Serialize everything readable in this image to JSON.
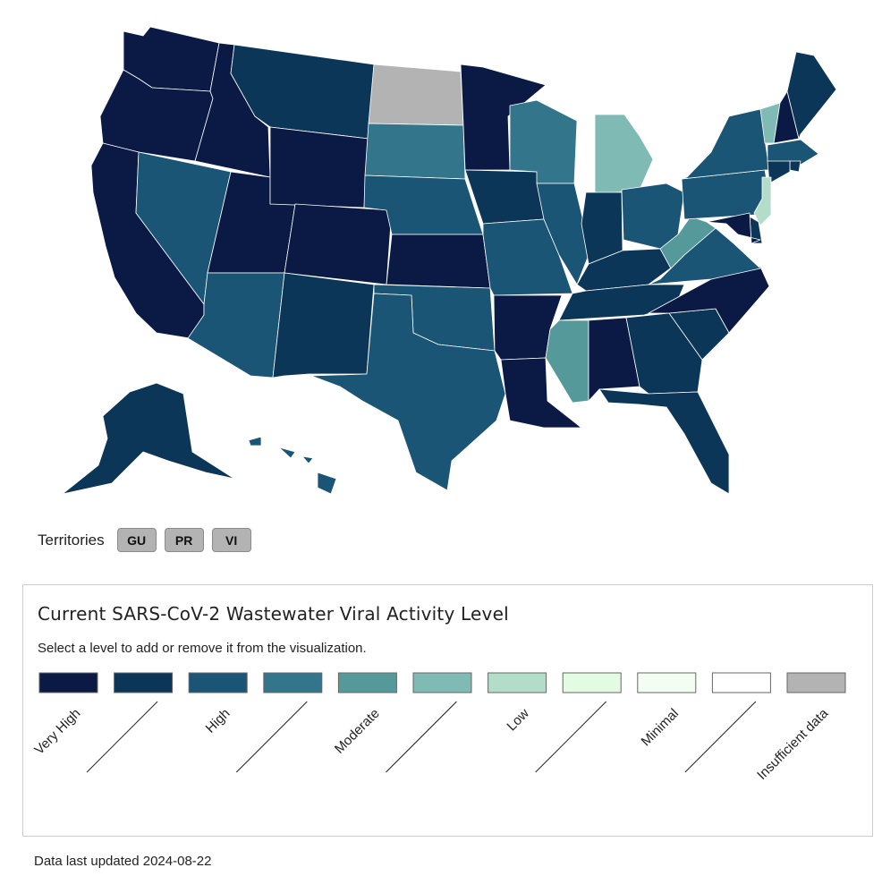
{
  "levels": [
    {
      "label": "Very High",
      "color": "#0b1a45"
    },
    {
      "label": "",
      "color": "#0b3658"
    },
    {
      "label": "High",
      "color": "#1a5575"
    },
    {
      "label": "",
      "color": "#33758a"
    },
    {
      "label": "Moderate",
      "color": "#55999b"
    },
    {
      "label": "",
      "color": "#80bab4"
    },
    {
      "label": "Low",
      "color": "#b3dcc9"
    },
    {
      "label": "",
      "color": "#e2fbe1"
    },
    {
      "label": "Minimal",
      "color": "#f3fdf1"
    },
    {
      "label": "",
      "color": "#ffffff"
    },
    {
      "label": "Insufficient data",
      "color": "#b3b3b3"
    }
  ],
  "state_levels": {
    "WA": 0,
    "OR": 0,
    "CA": 0,
    "ID": 0,
    "NV": 2,
    "UT": 0,
    "AZ": 2,
    "MT": 1,
    "WY": 0,
    "CO": 0,
    "NM": 1,
    "ND": 10,
    "SD": 3,
    "NE": 2,
    "KS": 0,
    "OK": 2,
    "TX": 2,
    "MN": 0,
    "IA": 1,
    "MO": 2,
    "AR": 0,
    "LA": 0,
    "WI": 3,
    "IL": 2,
    "MI": 5,
    "IN": 1,
    "OH": 2,
    "KY": 1,
    "TN": 1,
    "MS": 4,
    "AL": 0,
    "GA": 1,
    "FL": 1,
    "SC": 1,
    "NC": 0,
    "VA": 2,
    "WV": 4,
    "PA": 2,
    "NY": 2,
    "VT": 5,
    "NH": 0,
    "ME": 1,
    "MA": 2,
    "RI": 1,
    "CT": 1,
    "NJ": 6,
    "DE": 1,
    "MD": 0,
    "AK": 1,
    "HI": 2
  },
  "territories": {
    "label": "Territories",
    "items": [
      "GU",
      "PR",
      "VI"
    ]
  },
  "legend": {
    "title": "Current SARS-CoV-2 Wastewater Viral Activity Level",
    "subtitle": "Select a level to add or remove it from the visualization."
  },
  "footer": {
    "updated": "Data last updated 2024-08-22"
  }
}
